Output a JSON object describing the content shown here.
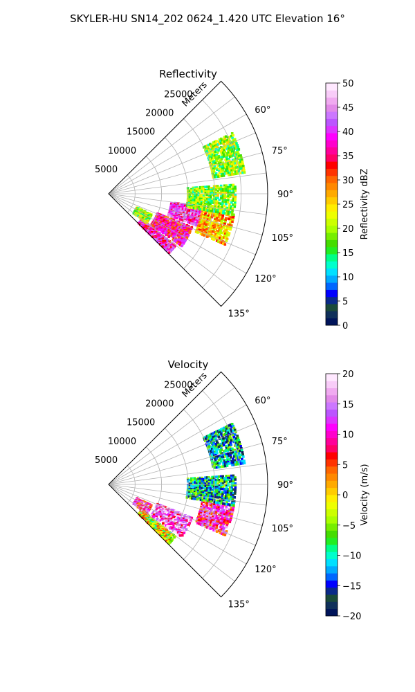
{
  "figure": {
    "title": "SKYLER-HU  SN14_202  0624_1.420 UTC Elevation 16°"
  },
  "chart_data": [
    {
      "type": "heatmap",
      "title": "Reflectivity",
      "radial_label": "Meters",
      "r_ticks": [
        5000,
        10000,
        15000,
        20000,
        25000
      ],
      "r_tick_labels": [
        "5000",
        "10000",
        "15000",
        "20000",
        "25000"
      ],
      "rlim": [
        0,
        30000
      ],
      "theta_ticks": [
        60,
        75,
        90,
        105,
        120,
        135
      ],
      "theta_tick_labels": [
        "60°",
        "75°",
        "90°",
        "105°",
        "120°",
        "135°"
      ],
      "theta_range_deg": [
        45,
        135
      ],
      "grid": true,
      "colorbar": {
        "label": "Reflectivity dBZ",
        "range": [
          0,
          50
        ],
        "ticks": [
          0,
          5,
          10,
          15,
          20,
          25,
          30,
          35,
          40,
          45,
          50
        ],
        "tick_labels": [
          "0",
          "5",
          "10",
          "15",
          "20",
          "25",
          "30",
          "35",
          "40",
          "45",
          "50"
        ],
        "colors": [
          "#00145a",
          "#10305a",
          "#1a4a3a",
          "#0a2a8a",
          "#0000ff",
          "#0066ff",
          "#00aaff",
          "#00e0ff",
          "#00ffcc",
          "#00ff88",
          "#22ee22",
          "#44dd00",
          "#77ee00",
          "#aaff00",
          "#ccff00",
          "#eeff00",
          "#ffee00",
          "#ffcc00",
          "#ffaa00",
          "#ff8800",
          "#ff6600",
          "#ff3300",
          "#ff0000",
          "#ff0066",
          "#ff0099",
          "#ff00cc",
          "#ff00ff",
          "#dd33ff",
          "#bb55ff",
          "#cc77ff",
          "#e28ae8",
          "#f0aaf0",
          "#f8ccf8",
          "#ffe8ff"
        ]
      },
      "echo_regions": [
        {
          "theta": [
            128,
            138
          ],
          "r": [
            8000,
            16000
          ],
          "dbz": 38
        },
        {
          "theta": [
            112,
            126
          ],
          "r": [
            10000,
            17000
          ],
          "dbz": 36
        },
        {
          "theta": [
            98,
            110
          ],
          "r": [
            12000,
            18000
          ],
          "dbz": 40
        },
        {
          "theta": [
            100,
            114
          ],
          "r": [
            18000,
            24000
          ],
          "dbz": 26
        },
        {
          "theta": [
            86,
            100
          ],
          "r": [
            15000,
            24000
          ],
          "dbz": 19
        },
        {
          "theta": [
            64,
            82
          ],
          "r": [
            20000,
            26000
          ],
          "dbz": 19
        },
        {
          "theta": [
            116,
            128
          ],
          "r": [
            6000,
            9000
          ],
          "dbz": 20
        }
      ]
    },
    {
      "type": "heatmap",
      "title": "Velocity",
      "radial_label": "Meters",
      "r_ticks": [
        5000,
        10000,
        15000,
        20000,
        25000
      ],
      "r_tick_labels": [
        "5000",
        "10000",
        "15000",
        "20000",
        "25000"
      ],
      "rlim": [
        0,
        30000
      ],
      "theta_ticks": [
        60,
        75,
        90,
        105,
        120,
        135
      ],
      "theta_tick_labels": [
        "60°",
        "75°",
        "90°",
        "105°",
        "120°",
        "135°"
      ],
      "theta_range_deg": [
        45,
        135
      ],
      "grid": true,
      "colorbar": {
        "label": "Velocity (m/s)",
        "range": [
          -20,
          20
        ],
        "ticks": [
          -20,
          -15,
          -10,
          -5,
          0,
          5,
          10,
          15,
          20
        ],
        "tick_labels": [
          "−20",
          "−15",
          "−10",
          "−5",
          "0",
          "5",
          "10",
          "15",
          "20"
        ],
        "colors": [
          "#00145a",
          "#10305a",
          "#1a4a3a",
          "#0a2a8a",
          "#0000ff",
          "#0066ff",
          "#00aaff",
          "#00e0ff",
          "#00ffcc",
          "#00ff88",
          "#22ee22",
          "#44dd00",
          "#77ee00",
          "#aaff00",
          "#ccff00",
          "#eeff00",
          "#ffee00",
          "#ffcc00",
          "#ffaa00",
          "#ff8800",
          "#ff6600",
          "#ff3300",
          "#ff0000",
          "#ff0066",
          "#ff0099",
          "#ff00cc",
          "#ff00ff",
          "#dd33ff",
          "#bb55ff",
          "#cc77ff",
          "#e28ae8",
          "#f0aaf0",
          "#f8ccf8",
          "#ffe8ff"
        ]
      },
      "echo_regions": [
        {
          "theta": [
            128,
            138
          ],
          "r": [
            8000,
            16000
          ],
          "vel": -2
        },
        {
          "theta": [
            112,
            126
          ],
          "r": [
            10000,
            17000
          ],
          "vel": 14
        },
        {
          "theta": [
            100,
            114
          ],
          "r": [
            18000,
            24000
          ],
          "vel": 10
        },
        {
          "theta": [
            86,
            100
          ],
          "r": [
            15000,
            24000
          ],
          "vel": -11
        },
        {
          "theta": [
            64,
            82
          ],
          "r": [
            20000,
            26000
          ],
          "vel": -12
        },
        {
          "theta": [
            116,
            128
          ],
          "r": [
            6000,
            9000
          ],
          "vel": 10
        }
      ]
    }
  ]
}
